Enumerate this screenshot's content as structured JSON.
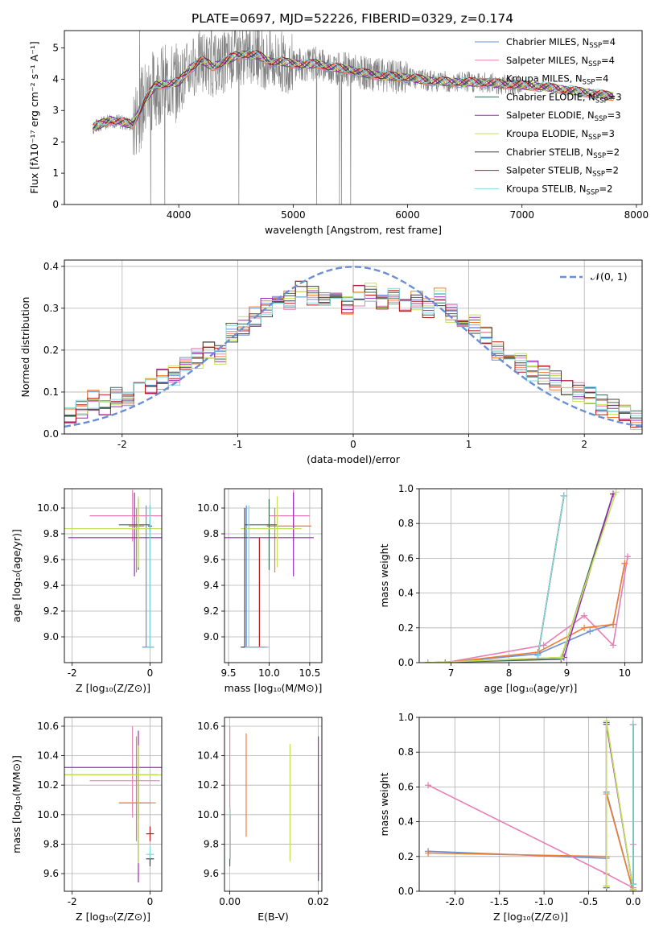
{
  "colors": {
    "chabrier_miles": "#6a8fd8",
    "salpeter_miles": "#e57fb5",
    "kroupa_miles": "#ee7d33",
    "chabrier_elodie": "#3d6b55",
    "salpeter_elodie": "#9929b8",
    "kroupa_elodie": "#c3e25a",
    "chabrier_stelib": "#3c3c3c",
    "salpeter_stelib": "#b51a1a",
    "kroupa_stelib": "#7fd8dc",
    "data": "#808080",
    "normal": "#6a8fd8"
  },
  "legend_entries": [
    {
      "key": "chabrier_miles",
      "label": "Chabrier MILES, N",
      "sub": "SSP",
      "suffix": "=4"
    },
    {
      "key": "salpeter_miles",
      "label": "Salpeter MILES, N",
      "sub": "SSP",
      "suffix": "=4"
    },
    {
      "key": "kroupa_miles",
      "label": "Kroupa MILES, N",
      "sub": "SSP",
      "suffix": "=4"
    },
    {
      "key": "chabrier_elodie",
      "label": "Chabrier ELODIE, N",
      "sub": "SSP",
      "suffix": "=3"
    },
    {
      "key": "salpeter_elodie",
      "label": "Salpeter ELODIE, N",
      "sub": "SSP",
      "suffix": "=3"
    },
    {
      "key": "kroupa_elodie",
      "label": "Kroupa ELODIE, N",
      "sub": "SSP",
      "suffix": "=3"
    },
    {
      "key": "chabrier_stelib",
      "label": "Chabrier STELIB, N",
      "sub": "SSP",
      "suffix": "=2"
    },
    {
      "key": "salpeter_stelib",
      "label": "Salpeter STELIB, N",
      "sub": "SSP",
      "suffix": "=2"
    },
    {
      "key": "kroupa_stelib",
      "label": "Kroupa STELIB, N",
      "sub": "SSP",
      "suffix": "=2"
    }
  ],
  "chart_data": [
    {
      "id": "spectrum",
      "type": "line",
      "title": "PLATE=0697, MJD=52226, FIBERID=0329, z=0.174",
      "xlabel": "wavelength [Angstrom, rest frame]",
      "ylabel": "Flux [fλ10⁻¹⁷ erg cm⁻² s⁻¹ A⁻¹]",
      "xlim": [
        3000,
        8050
      ],
      "ylim": [
        0,
        5.55
      ],
      "xticks": [
        4000,
        5000,
        6000,
        7000,
        8000
      ],
      "yticks": [
        0,
        1,
        2,
        3,
        4,
        5
      ],
      "grid": false,
      "legend": "top-right",
      "continuum_x": [
        3250,
        3400,
        3600,
        3700,
        3800,
        3900,
        4000,
        4100,
        4200,
        4300,
        4400,
        4500,
        4600,
        4700,
        4800,
        4900,
        5000,
        5100,
        5200,
        5300,
        5400,
        5500,
        5600,
        5800,
        6000,
        6200,
        6400,
        6600,
        6800,
        7000,
        7200,
        7400,
        7600,
        7800
      ],
      "continuum_y": [
        2.45,
        2.7,
        2.55,
        3.3,
        3.8,
        3.85,
        3.9,
        4.35,
        4.6,
        4.4,
        4.55,
        4.75,
        4.8,
        4.75,
        4.55,
        4.55,
        4.5,
        4.45,
        4.5,
        4.4,
        4.35,
        4.3,
        4.2,
        4.1,
        4.05,
        3.95,
        3.9,
        3.9,
        3.85,
        3.8,
        3.75,
        3.65,
        3.55,
        3.45
      ]
    },
    {
      "id": "residuals",
      "type": "line",
      "xlabel": "(data-model)/error",
      "ylabel": "Normed distribution",
      "xlim": [
        -2.5,
        2.5
      ],
      "ylim": [
        0,
        0.415
      ],
      "xticks": [
        -2,
        -1,
        0,
        1,
        2
      ],
      "yticks": [
        0.0,
        0.1,
        0.2,
        0.3,
        0.4
      ],
      "grid": true,
      "legend": "top-right",
      "legend_label": "𝒩(0, 1)",
      "bin_centers": [
        -2.45,
        -2.35,
        -2.25,
        -2.15,
        -2.05,
        -1.95,
        -1.85,
        -1.75,
        -1.65,
        -1.55,
        -1.45,
        -1.35,
        -1.25,
        -1.15,
        -1.05,
        -0.95,
        -0.85,
        -0.75,
        -0.65,
        -0.55,
        -0.45,
        -0.35,
        -0.25,
        -0.15,
        -0.05,
        0.05,
        0.15,
        0.25,
        0.35,
        0.45,
        0.55,
        0.65,
        0.75,
        0.85,
        0.95,
        1.05,
        1.15,
        1.25,
        1.35,
        1.45,
        1.55,
        1.65,
        1.75,
        1.85,
        1.95,
        2.05,
        2.15,
        2.25,
        2.35,
        2.45
      ],
      "base_values": [
        0.05,
        0.06,
        0.08,
        0.07,
        0.09,
        0.08,
        0.1,
        0.12,
        0.13,
        0.14,
        0.16,
        0.18,
        0.2,
        0.19,
        0.24,
        0.26,
        0.28,
        0.3,
        0.31,
        0.32,
        0.34,
        0.33,
        0.32,
        0.33,
        0.31,
        0.33,
        0.34,
        0.32,
        0.33,
        0.31,
        0.32,
        0.3,
        0.33,
        0.29,
        0.28,
        0.26,
        0.24,
        0.2,
        0.19,
        0.17,
        0.15,
        0.14,
        0.13,
        0.11,
        0.1,
        0.09,
        0.07,
        0.06,
        0.05,
        0.03
      ]
    },
    {
      "id": "age_vs_Z",
      "type": "scatter",
      "xlabel": "Z [log₁₀(Z/Z⊙)]",
      "ylabel": "age  [log₁₀(age/yr)]",
      "xlim": [
        -2.2,
        0.3
      ],
      "ylim": [
        8.8,
        10.15
      ],
      "xticks": [
        -2,
        0
      ],
      "yticks": [
        9.0,
        9.2,
        9.4,
        9.6,
        9.8,
        10.0
      ],
      "grid": true,
      "points": [
        {
          "key": "chabrier_miles",
          "x": -0.1,
          "xerr": [
            0.1,
            0.1
          ],
          "y": 8.92,
          "yerr": [
            0,
            1.1
          ]
        },
        {
          "key": "salpeter_miles",
          "x": -0.45,
          "xerr": [
            1.1,
            1.0
          ],
          "y": 9.94,
          "yerr": [
            0.2,
            0.2
          ]
        },
        {
          "key": "kroupa_miles",
          "x": -0.35,
          "xerr": [
            0.2,
            0.2
          ],
          "y": 9.86,
          "yerr": [
            0.36,
            0.14
          ]
        },
        {
          "key": "chabrier_elodie",
          "x": -0.3,
          "xerr": [
            0.5,
            0.3
          ],
          "y": 9.87,
          "yerr": [
            0.35,
            0.2
          ]
        },
        {
          "key": "salpeter_elodie",
          "x": -0.4,
          "xerr": [
            1.7,
            0.7
          ],
          "y": 9.77,
          "yerr": [
            0.3,
            0.35
          ]
        },
        {
          "key": "kroupa_elodie",
          "x": -0.3,
          "xerr": [
            1.9,
            0.6
          ],
          "y": 9.84,
          "yerr": [
            0.3,
            0.25
          ]
        },
        {
          "key": "chabrier_stelib",
          "x": 0.0,
          "xerr": [
            0.1,
            0.1
          ],
          "y": 8.92,
          "yerr": [
            0,
            1.1
          ]
        },
        {
          "key": "salpeter_stelib",
          "x": 0.0,
          "xerr": [
            0.05,
            0.05
          ],
          "y": 9.86,
          "yerr": [
            0.05,
            0.05
          ]
        },
        {
          "key": "kroupa_stelib",
          "x": 0.0,
          "xerr": [
            0.1,
            0.1
          ],
          "y": 8.92,
          "yerr": [
            0,
            1.1
          ]
        }
      ]
    },
    {
      "id": "age_vs_mass",
      "type": "scatter",
      "xlabel": "mass [log₁₀(M/M⊙)]",
      "ylabel": "",
      "xlim": [
        9.45,
        10.65
      ],
      "ylim": [
        8.8,
        10.15
      ],
      "xticks": [
        9.5,
        10.0,
        10.5
      ],
      "yticks": [
        9.0,
        9.2,
        9.4,
        9.6,
        9.8,
        10.0
      ],
      "grid": true,
      "points": [
        {
          "key": "chabrier_miles",
          "x": 9.72,
          "xerr": [
            0.05,
            0.25
          ],
          "y": 8.92,
          "yerr": [
            0,
            1.1
          ]
        },
        {
          "key": "salpeter_miles",
          "x": 10.3,
          "xerr": [
            0.3,
            0.2
          ],
          "y": 9.94,
          "yerr": [
            0.2,
            0.2
          ]
        },
        {
          "key": "kroupa_miles",
          "x": 10.07,
          "xerr": [
            0.1,
            0.45
          ],
          "y": 9.86,
          "yerr": [
            0.36,
            0.14
          ]
        },
        {
          "key": "chabrier_elodie",
          "x": 10.0,
          "xerr": [
            0.3,
            0.1
          ],
          "y": 9.87,
          "yerr": [
            0.35,
            0.2
          ]
        },
        {
          "key": "salpeter_elodie",
          "x": 10.3,
          "xerr": [
            0.9,
            0.25
          ],
          "y": 9.77,
          "yerr": [
            0.3,
            0.35
          ]
        },
        {
          "key": "kroupa_elodie",
          "x": 10.1,
          "xerr": [
            0.45,
            0.3
          ],
          "y": 9.84,
          "yerr": [
            0.3,
            0.25
          ]
        },
        {
          "key": "chabrier_stelib",
          "x": 9.7,
          "xerr": [
            0.05,
            0.25
          ],
          "y": 8.92,
          "yerr": [
            0,
            1.08
          ]
        },
        {
          "key": "salpeter_stelib",
          "x": 9.88,
          "xerr": [
            0.1,
            0.1
          ],
          "y": 8.92,
          "yerr": [
            0,
            0.85
          ]
        },
        {
          "key": "kroupa_stelib",
          "x": 9.75,
          "xerr": [
            0.05,
            0.25
          ],
          "y": 8.92,
          "yerr": [
            0,
            1.1
          ]
        }
      ]
    },
    {
      "id": "weight_vs_age",
      "type": "line",
      "xlabel": "age  [log₁₀(age/yr)]",
      "ylabel": "mass weight",
      "xlim": [
        6.45,
        10.3
      ],
      "ylim": [
        0,
        1.0
      ],
      "xticks": [
        7,
        8,
        9,
        10
      ],
      "yticks": [
        0.0,
        0.2,
        0.4,
        0.6,
        0.8,
        1.0
      ],
      "grid": true,
      "series": [
        {
          "key": "chabrier_miles",
          "x": [
            6.9,
            8.5,
            9.4,
            9.8,
            10.0
          ],
          "y": [
            0.0,
            0.05,
            0.18,
            0.22,
            0.57
          ]
        },
        {
          "key": "salpeter_miles",
          "x": [
            6.9,
            8.6,
            9.3,
            9.8,
            10.05
          ],
          "y": [
            0.0,
            0.1,
            0.27,
            0.1,
            0.61
          ]
        },
        {
          "key": "kroupa_miles",
          "x": [
            6.9,
            8.5,
            9.3,
            9.8,
            10.0
          ],
          "y": [
            0.0,
            0.06,
            0.2,
            0.22,
            0.57
          ]
        },
        {
          "key": "chabrier_elodie",
          "x": [
            6.6,
            8.9,
            9.8
          ],
          "y": [
            0.0,
            0.02,
            0.97
          ]
        },
        {
          "key": "salpeter_elodie",
          "x": [
            6.6,
            8.95,
            9.8
          ],
          "y": [
            0.0,
            0.03,
            0.97
          ]
        },
        {
          "key": "kroupa_elodie",
          "x": [
            6.6,
            8.9,
            9.85
          ],
          "y": [
            0.0,
            0.03,
            0.98
          ]
        },
        {
          "key": "chabrier_stelib",
          "x": [
            8.5,
            8.95
          ],
          "y": [
            0.04,
            0.96
          ]
        },
        {
          "key": "salpeter_stelib",
          "x": [
            8.5,
            8.95
          ],
          "y": [
            0.04,
            0.96
          ]
        },
        {
          "key": "kroupa_stelib",
          "x": [
            8.5,
            8.95
          ],
          "y": [
            0.04,
            0.96
          ]
        }
      ]
    },
    {
      "id": "mass_vs_Z",
      "type": "scatter",
      "xlabel": "Z [log₁₀(Z/Z⊙)]",
      "ylabel": "mass [log₁₀(M/M⊙)]",
      "xlim": [
        -2.2,
        0.3
      ],
      "ylim": [
        9.48,
        10.66
      ],
      "xticks": [
        -2,
        0
      ],
      "yticks": [
        9.6,
        9.8,
        10.0,
        10.2,
        10.4,
        10.6
      ],
      "grid": true,
      "points": [
        {
          "key": "chabrier_miles",
          "x": -0.3,
          "xerr": [
            0.5,
            0.3
          ],
          "y": 10.08,
          "yerr": [
            0.4,
            0.2
          ]
        },
        {
          "key": "salpeter_miles",
          "x": -0.45,
          "xerr": [
            1.1,
            0.7
          ],
          "y": 10.23,
          "yerr": [
            0.25,
            0.37
          ]
        },
        {
          "key": "kroupa_miles",
          "x": -0.35,
          "xerr": [
            0.45,
            0.5
          ],
          "y": 10.08,
          "yerr": [
            0.26,
            0.45
          ]
        },
        {
          "key": "chabrier_elodie",
          "x": -0.3,
          "xerr": [
            1.9,
            0.5
          ],
          "y": 10.27,
          "yerr": [
            0.3,
            0.2
          ]
        },
        {
          "key": "salpeter_elodie",
          "x": -0.3,
          "xerr": [
            1.9,
            0.6
          ],
          "y": 10.32,
          "yerr": [
            0.78,
            0.25
          ]
        },
        {
          "key": "kroupa_elodie",
          "x": -0.3,
          "xerr": [
            1.9,
            0.6
          ],
          "y": 10.27,
          "yerr": [
            0.6,
            0.2
          ]
        },
        {
          "key": "chabrier_stelib",
          "x": 0.0,
          "xerr": [
            0.1,
            0.1
          ],
          "y": 9.7,
          "yerr": [
            0.05,
            0.05
          ]
        },
        {
          "key": "salpeter_stelib",
          "x": 0.0,
          "xerr": [
            0.1,
            0.1
          ],
          "y": 9.87,
          "yerr": [
            0.05,
            0.05
          ]
        },
        {
          "key": "kroupa_stelib",
          "x": 0.0,
          "xerr": [
            0.1,
            0.1
          ],
          "y": 9.73,
          "yerr": [
            0.03,
            0.05
          ]
        }
      ]
    },
    {
      "id": "mass_vs_ebv",
      "type": "scatter",
      "xlabel": "E(B-V)",
      "ylabel": "",
      "xlim": [
        -0.0012,
        0.0208
      ],
      "ylim": [
        9.48,
        10.66
      ],
      "xticks": [
        0.0,
        0.02
      ],
      "yticks": [
        9.6,
        9.8,
        10.0,
        10.2,
        10.4,
        10.6
      ],
      "grid": true,
      "points": [
        {
          "key": "chabrier_miles",
          "x": 0.0,
          "xerr": [
            0,
            0
          ],
          "y": 9.8,
          "yerr": [
            0.1,
            0.1
          ]
        },
        {
          "key": "salpeter_miles",
          "x": 0.0,
          "xerr": [
            0,
            0
          ],
          "y": 10.1,
          "yerr": [
            0.4,
            0.5
          ]
        },
        {
          "key": "kroupa_miles",
          "x": 0.0037,
          "xerr": [
            0,
            0
          ],
          "y": 10.2,
          "yerr": [
            0.35,
            0.35
          ]
        },
        {
          "key": "chabrier_elodie",
          "x": 0.0,
          "xerr": [
            0,
            0
          ],
          "y": 9.85,
          "yerr": [
            0.2,
            0.2
          ]
        },
        {
          "key": "salpeter_elodie",
          "x": 0.02,
          "xerr": [
            0,
            0
          ],
          "y": 10.0,
          "yerr": [
            0.45,
            0.53
          ]
        },
        {
          "key": "kroupa_elodie",
          "x": 0.0136,
          "xerr": [
            0,
            0
          ],
          "y": 10.1,
          "yerr": [
            0.42,
            0.38
          ]
        },
        {
          "key": "chabrier_stelib",
          "x": 0.0,
          "xerr": [
            0,
            0
          ],
          "y": 9.8,
          "yerr": [
            0.1,
            0.2
          ]
        },
        {
          "key": "salpeter_stelib",
          "x": 0.0,
          "xerr": [
            0,
            0
          ],
          "y": 9.85,
          "yerr": [
            0.15,
            0.15
          ]
        },
        {
          "key": "kroupa_stelib",
          "x": 0.0,
          "xerr": [
            0,
            0
          ],
          "y": 9.9,
          "yerr": [
            0.2,
            0.15
          ]
        }
      ]
    },
    {
      "id": "weight_vs_Z",
      "type": "line",
      "xlabel": "Z [log₁₀(Z/Z⊙)]",
      "ylabel": "mass weight",
      "xlim": [
        -2.4,
        0.1
      ],
      "ylim": [
        0,
        1.0
      ],
      "xticks": [
        -2.0,
        -1.5,
        -1.0,
        -0.5,
        0.0
      ],
      "yticks": [
        0.0,
        0.2,
        0.4,
        0.6,
        0.8,
        1.0
      ],
      "grid": true,
      "series": [
        {
          "key": "chabrier_miles",
          "x": [
            -2.3,
            -0.3,
            -0.3,
            0.0
          ],
          "y": [
            0.23,
            0.19,
            0.57,
            0.0
          ]
        },
        {
          "key": "salpeter_miles",
          "x": [
            -2.3,
            -0.3,
            0.0,
            0.0
          ],
          "y": [
            0.61,
            0.1,
            0.02,
            0.27
          ]
        },
        {
          "key": "kroupa_miles",
          "x": [
            -2.3,
            -0.3,
            -0.3,
            0.0
          ],
          "y": [
            0.22,
            0.2,
            0.56,
            0.0
          ]
        },
        {
          "key": "chabrier_elodie",
          "x": [
            -0.3,
            -0.3,
            0.0
          ],
          "y": [
            0.02,
            0.97,
            0.01
          ]
        },
        {
          "key": "salpeter_elodie",
          "x": [
            -0.3,
            -0.3,
            0.0
          ],
          "y": [
            0.03,
            0.96,
            0.01
          ]
        },
        {
          "key": "kroupa_elodie",
          "x": [
            -0.3,
            -0.3,
            0.0
          ],
          "y": [
            0.03,
            0.98,
            0.01
          ]
        },
        {
          "key": "chabrier_stelib",
          "x": [
            0.0,
            0.0
          ],
          "y": [
            0.04,
            0.96
          ]
        },
        {
          "key": "salpeter_stelib",
          "x": [
            0.0,
            0.0
          ],
          "y": [
            0.04,
            0.96
          ]
        },
        {
          "key": "kroupa_stelib",
          "x": [
            0.0,
            0.0
          ],
          "y": [
            0.04,
            0.96
          ]
        }
      ]
    }
  ]
}
